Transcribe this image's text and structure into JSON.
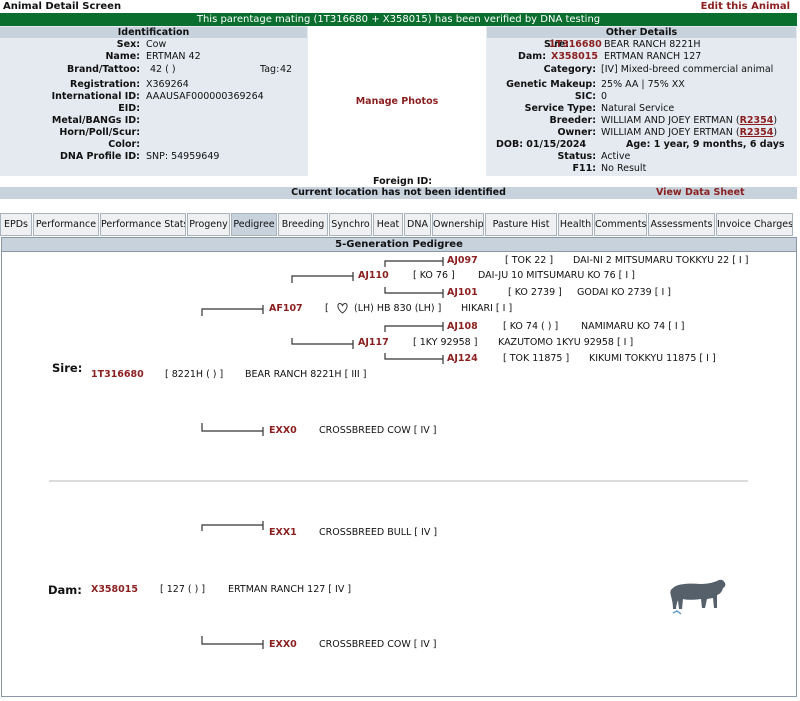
{
  "screen": {
    "title": "Animal Detail Screen",
    "edit_link": "Edit this Animal"
  },
  "banner": "This parentage mating (1T316680 + X358015) has been verified by DNA testing",
  "identification": {
    "heading": "Identification",
    "sex_label": "Sex:",
    "sex": "Cow",
    "name_label": "Name:",
    "name": "ERTMAN 42",
    "brand_label": "Brand/Tattoo:",
    "brand": "42 ( )",
    "tag_label": "Tag:",
    "tag": "42",
    "registration_label": "Registration:",
    "registration": "X369264",
    "intl_label": "International ID:",
    "intl_id": "AAAUSAF000000369264",
    "eid_label": "EID:",
    "eid": "",
    "metal_label": "Metal/BANGs ID:",
    "metal": "",
    "horn_label": "Horn/Poll/Scur:",
    "horn": "",
    "color_label": "Color:",
    "color": "",
    "dna_label": "DNA Profile ID:",
    "dna": "SNP: 54959649"
  },
  "photo": {
    "manage_label": "Manage Photos"
  },
  "other": {
    "heading": "Other Details",
    "sire_label": "Sire:",
    "sire_id": "1T316680",
    "sire_name": "BEAR RANCH 8221H",
    "dam_label": "Dam:",
    "dam_id": "X358015",
    "dam_name": "ERTMAN RANCH 127",
    "category_label": "Category:",
    "category": "[IV] Mixed-breed commercial animal",
    "genetic_label": "Genetic Makeup:",
    "genetic": "25% AA | 75% XX",
    "sic_label": "SIC:",
    "sic": "0",
    "service_label": "Service Type:",
    "service": "Natural Service",
    "breeder_label": "Breeder:",
    "breeder": "WILLIAM AND JOEY ERTMAN (",
    "breeder_code": "R2354",
    "breeder_close": ")",
    "owner_label": "Owner:",
    "owner": "WILLIAM AND JOEY ERTMAN (",
    "owner_code": "R2354",
    "owner_close": ")",
    "dob": "DOB: 01/15/2024",
    "age": "Age: 1 year, 9 months, 6 days",
    "status_label": "Status:",
    "status": "Active",
    "f11_label": "F11:",
    "f11": "No Result"
  },
  "foreign_id_label": "Foreign ID:",
  "location_msg": "Current location has not been identified",
  "view_data_sheet": "View Data Sheet",
  "tabs": [
    "EPDs",
    "Performance",
    "Performance Stats",
    "Progeny",
    "Pedigree",
    "Breeding",
    "Synchro",
    "Heat",
    "DNA",
    "Ownership",
    "Pasture Hist",
    "Health",
    "Comments",
    "Assessments",
    "Invoice Charges"
  ],
  "active_tab": "Pedigree",
  "pedigree": {
    "heading": "5-Generation Pedigree",
    "sire_label": "Sire:",
    "dam_label": "Dam:",
    "sire": {
      "id": "1T316680",
      "tattoo": "[ 8221H ( ) ]",
      "name": "BEAR RANCH 8221H [ III ]"
    },
    "dam": {
      "id": "X358015",
      "tattoo": "[ 127 ( ) ]",
      "name": "ERTMAN RANCH 127 [ IV ]"
    },
    "af107": {
      "id": "AF107",
      "tattoo_pre": "[",
      "tattoo_post": "(LH) HB 830 (LH) ]",
      "name": "HIKARI [ I ]"
    },
    "aj110": {
      "id": "AJ110",
      "tattoo": "[ KO 76 ]",
      "name": "DAI-JU 10 MITSUMARU KO 76 [ I ]"
    },
    "aj097": {
      "id": "AJ097",
      "tattoo": "[ TOK 22 ]",
      "name": "DAI-NI 2 MITSUMARU TOKKYU 22 [ I ]"
    },
    "aj101": {
      "id": "AJ101",
      "tattoo": "[ KO 2739 ]",
      "name": "GODAI KO 2739 [ I ]"
    },
    "aj117": {
      "id": "AJ117",
      "tattoo": "[ 1KY 92958 ]",
      "name": "KAZUTOMO 1KYU 92958 [ I ]"
    },
    "aj108": {
      "id": "AJ108",
      "tattoo": "[ KO 74 ( ) ]",
      "name": "NAMIMARU KO 74 [ I ]"
    },
    "aj124": {
      "id": "AJ124",
      "tattoo": "[ TOK 11875 ]",
      "name": "KIKUMI TOKKYU 11875 [ I ]"
    },
    "exx0_sire": {
      "id": "EXX0",
      "name": "CROSSBREED COW [ IV ]"
    },
    "exx1": {
      "id": "EXX1",
      "name": "CROSSBREED BULL [ IV ]"
    },
    "exx0_dam": {
      "id": "EXX0",
      "name": "CROSSBREED COW [ IV ]"
    }
  },
  "colors": {
    "link_red": "#8b1f1f",
    "banner_green": "#0a6e2e",
    "header_gray": "#c7d2dd"
  }
}
